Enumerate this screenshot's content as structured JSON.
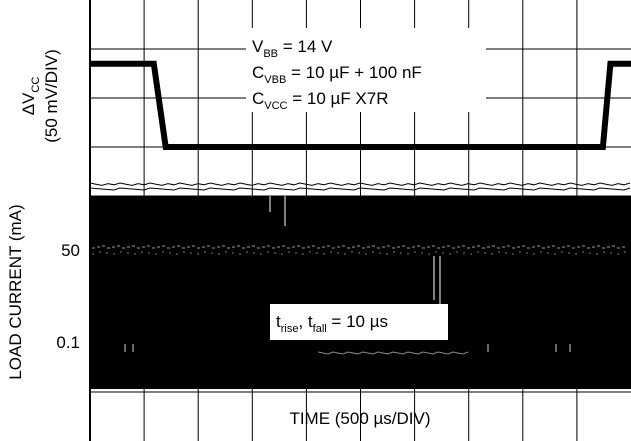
{
  "chart_data": {
    "type": "line",
    "xlabel": "TIME (500 µs/DIV)",
    "grid": true,
    "panels": [
      {
        "name": "top",
        "ylabel_main": "ΔV",
        "ylabel_sub": "CC",
        "ylabel_scale": "(50 mV/DIV)",
        "series": [
          {
            "x_div": [
              0,
              1.18,
              1.4,
              9.48,
              9.62,
              10
            ],
            "y_div": [
              2.7,
              2.7,
              1.0,
              1.0,
              2.7,
              2.7
            ]
          }
        ]
      },
      {
        "name": "bottom",
        "ylabel": "LOAD CURRENT (mA)",
        "tick_labels": [
          {
            "label": "50"
          },
          {
            "label": "0.1"
          }
        ],
        "series": [
          {
            "x_div": [
              0,
              3.2,
              3.2,
              5.2,
              5.2,
              10
            ],
            "level": [
              "high",
              "high",
              "low",
              "low",
              "high",
              "high"
            ]
          }
        ]
      }
    ],
    "annotations": {
      "conditions": [
        {
          "main": "V",
          "sub": "BB",
          "rest": " = 14 V"
        },
        {
          "main": "C",
          "sub": "VBB",
          "rest": " = 10 µF + 100 nF"
        },
        {
          "main": "C",
          "sub": "VCC",
          "rest": " = 10 µF X7R"
        }
      ],
      "transition": {
        "t1": "t",
        "s1": "rise",
        "mid": ", t",
        "s2": "fall",
        "rest": " = 10 µs"
      }
    }
  }
}
